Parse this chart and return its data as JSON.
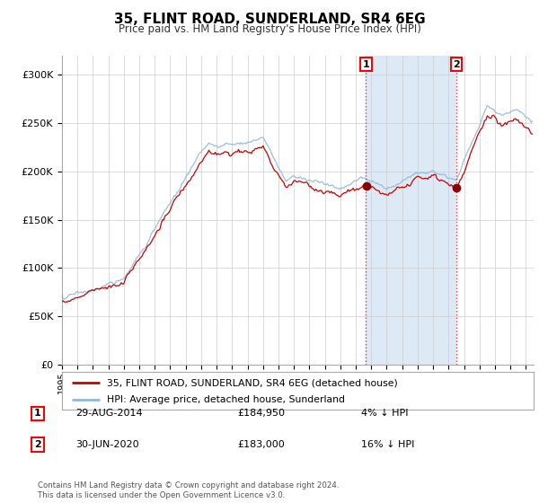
{
  "title": "35, FLINT ROAD, SUNDERLAND, SR4 6EG",
  "subtitle": "Price paid vs. HM Land Registry's House Price Index (HPI)",
  "sale1_date": "29-AUG-2014",
  "sale1_price": 184950,
  "sale1_label": "1",
  "sale1_pct": "4% ↓ HPI",
  "sale2_date": "30-JUN-2020",
  "sale2_price": 183000,
  "sale2_label": "2",
  "sale2_pct": "16% ↓ HPI",
  "legend_line1": "35, FLINT ROAD, SUNDERLAND, SR4 6EG (detached house)",
  "legend_line2": "HPI: Average price, detached house, Sunderland",
  "footer": "Contains HM Land Registry data © Crown copyright and database right 2024.\nThis data is licensed under the Open Government Licence v3.0.",
  "hpi_color": "#90b8d8",
  "price_color": "#cc0000",
  "sale1_x": 2014.66,
  "sale2_x": 2020.5,
  "ylim": [
    0,
    320000
  ],
  "yticks": [
    0,
    50000,
    100000,
    150000,
    200000,
    250000,
    300000
  ],
  "xlim_start": 1995,
  "xlim_end": 2025.5,
  "background_color": "#ffffff",
  "chart_bg": "#ffffff",
  "shade_color": "#ddeaf5"
}
